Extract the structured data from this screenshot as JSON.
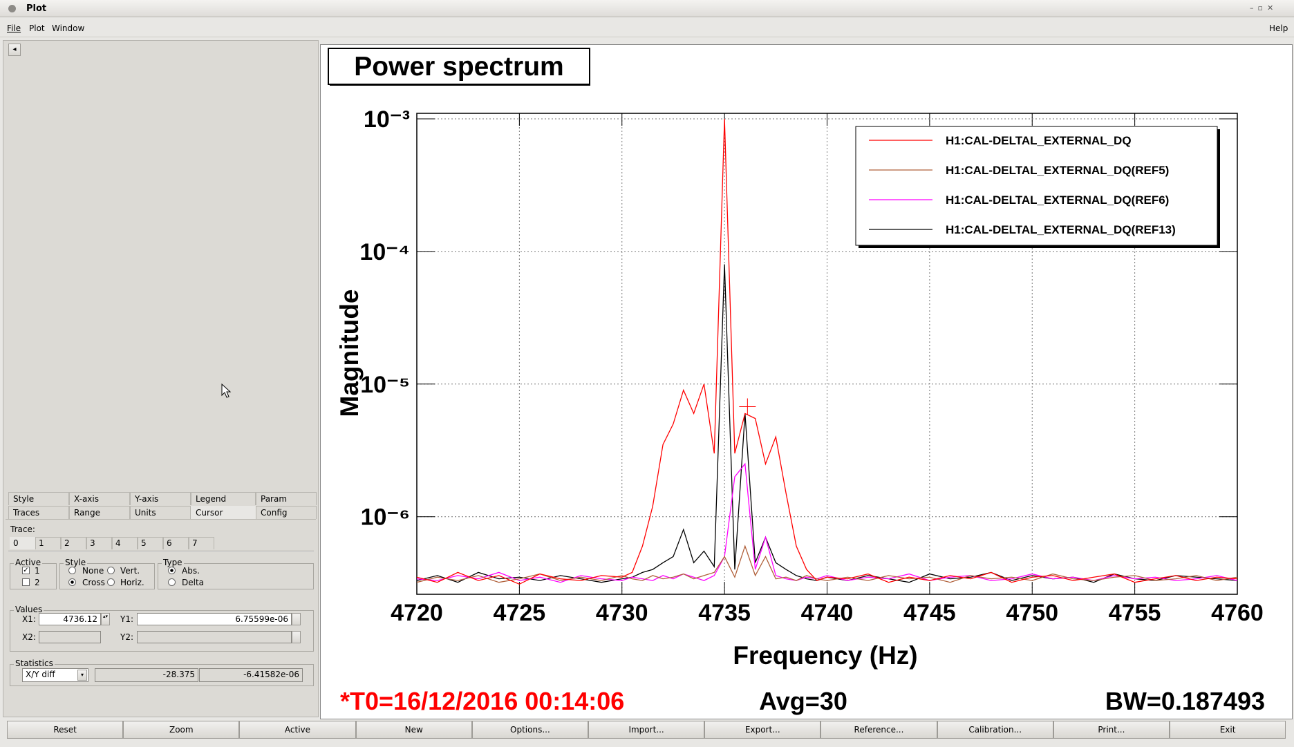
{
  "window": {
    "title": "Plot",
    "menu": [
      "File",
      "Plot",
      "Window"
    ],
    "help": "Help"
  },
  "panel": {
    "tabs_row1": [
      "Style",
      "X-axis",
      "Y-axis",
      "Legend",
      "Param"
    ],
    "tabs_row2": [
      "Traces",
      "Range",
      "Units",
      "Cursor",
      "Config"
    ],
    "trace_label": "Trace:",
    "trace_tabs": [
      "0",
      "1",
      "2",
      "3",
      "4",
      "5",
      "6",
      "7"
    ],
    "active": {
      "title": "Active",
      "items": [
        "1",
        "2"
      ]
    },
    "style": {
      "title": "Style",
      "items": [
        "None",
        "Vert.",
        "Cross",
        "Horiz."
      ]
    },
    "type": {
      "title": "Type",
      "items": [
        "Abs.",
        "Delta"
      ]
    },
    "values": {
      "title": "Values",
      "x1_label": "X1:",
      "x1": "4736.12",
      "y1_label": "Y1:",
      "y1": "6.75599e-06",
      "x2_label": "X2:",
      "y2_label": "Y2:"
    },
    "statistics": {
      "title": "Statistics",
      "mode": "X/Y diff",
      "dx": "-28.375",
      "dy": "-6.41582e-06"
    }
  },
  "buttons": [
    "Reset",
    "Zoom",
    "Active",
    "New",
    "Options...",
    "Import...",
    "Export...",
    "Reference...",
    "Calibration...",
    "Print...",
    "Exit"
  ],
  "chart_data": {
    "type": "line",
    "title": "Power spectrum",
    "x_label": "Frequency (Hz)",
    "y_label": "Magnitude",
    "log_y": true,
    "grid": true,
    "legend": "top-right",
    "annotations": {
      "t0": "*T0=16/12/2016 00:14:06",
      "avg": "Avg=30",
      "bw": "BW=0.187493"
    },
    "xlim": [
      4720,
      4760
    ],
    "xticks": [
      4720,
      4725,
      4730,
      4735,
      4740,
      4745,
      4750,
      4755,
      4760
    ],
    "ylim": [
      2.6e-07,
      0.0011
    ],
    "yticks": [
      {
        "value": 1e-06,
        "label": "10⁻⁶"
      },
      {
        "value": 1e-05,
        "label": "10⁻⁵"
      },
      {
        "value": 0.0001,
        "label": "10⁻⁴"
      },
      {
        "value": 0.001,
        "label": "10⁻³"
      }
    ],
    "x": [
      4720,
      4721,
      4722,
      4723,
      4724,
      4725,
      4726,
      4727,
      4728,
      4729,
      4730,
      4730.5,
      4731,
      4731.5,
      4732,
      4732.5,
      4733,
      4733.5,
      4734,
      4734.5,
      4735,
      4735.5,
      4736,
      4736.5,
      4737,
      4737.5,
      4738,
      4738.5,
      4739,
      4739.5,
      4740,
      4741,
      4742,
      4743,
      4744,
      4745,
      4746,
      4747,
      4748,
      4749,
      4750,
      4751,
      4752,
      4753,
      4754,
      4755,
      4756,
      4757,
      4758,
      4759,
      4760
    ],
    "series": [
      {
        "name": "H1:CAL-DELTAL_EXTERNAL_DQ",
        "color": "#ff0000",
        "values": [
          3.5e-07,
          3.2e-07,
          3.8e-07,
          3.3e-07,
          3.6e-07,
          3.1e-07,
          3.7e-07,
          3.4e-07,
          3.3e-07,
          3.6e-07,
          3.5e-07,
          3.8e-07,
          6e-07,
          1.2e-06,
          3.5e-06,
          5e-06,
          9e-06,
          6e-06,
          1e-05,
          3e-06,
          0.001,
          3e-06,
          6e-06,
          5.5e-06,
          2.5e-06,
          4e-06,
          1.5e-06,
          6e-07,
          4e-07,
          3.3e-07,
          3.5e-07,
          3.4e-07,
          3.7e-07,
          3.2e-07,
          3.5e-07,
          3.3e-07,
          3.6e-07,
          3.4e-07,
          3.8e-07,
          3.2e-07,
          3.5e-07,
          3.6e-07,
          3.3e-07,
          3.5e-07,
          3.7e-07,
          3.2e-07,
          3.4e-07,
          3.6e-07,
          3.3e-07,
          3.5e-07,
          3.4e-07
        ]
      },
      {
        "name": "H1:CAL-DELTAL_EXTERNAL_DQ(REF5)",
        "color": "#b0603a",
        "values": [
          3.2e-07,
          3.5e-07,
          3.3e-07,
          3.6e-07,
          3.2e-07,
          3.4e-07,
          3.7e-07,
          3.3e-07,
          3.5e-07,
          3.3e-07,
          3.6e-07,
          3.4e-07,
          3.3e-07,
          3.6e-07,
          3.4e-07,
          3.5e-07,
          3.7e-07,
          3.4e-07,
          3.6e-07,
          3.8e-07,
          5e-07,
          3.5e-07,
          6e-07,
          3.6e-07,
          5e-07,
          3.4e-07,
          3.5e-07,
          3.3e-07,
          3.6e-07,
          3.4e-07,
          3.3e-07,
          3.5e-07,
          3.3e-07,
          3.6e-07,
          3.4e-07,
          3.5e-07,
          3.2e-07,
          3.6e-07,
          3.4e-07,
          3.5e-07,
          3.3e-07,
          3.7e-07,
          3.4e-07,
          3.3e-07,
          3.5e-07,
          3.6e-07,
          3.3e-07,
          3.4e-07,
          3.6e-07,
          3.3e-07,
          3.5e-07
        ]
      },
      {
        "name": "H1:CAL-DELTAL_EXTERNAL_DQ(REF6)",
        "color": "#ff00ff",
        "values": [
          3.4e-07,
          3.3e-07,
          3.6e-07,
          3.4e-07,
          3.8e-07,
          3.3e-07,
          3.5e-07,
          3.2e-07,
          3.6e-07,
          3.4e-07,
          3.3e-07,
          3.5e-07,
          3.4e-07,
          3.3e-07,
          3.6e-07,
          3.4e-07,
          3.7e-07,
          3.5e-07,
          3.3e-07,
          3.6e-07,
          5e-07,
          2e-06,
          2.5e-06,
          4e-07,
          7e-07,
          3.6e-07,
          3.4e-07,
          3.3e-07,
          3.5e-07,
          3.4e-07,
          3.6e-07,
          3.3e-07,
          3.5e-07,
          3.4e-07,
          3.7e-07,
          3.3e-07,
          3.5e-07,
          3.6e-07,
          3.3e-07,
          3.4e-07,
          3.7e-07,
          3.4e-07,
          3.5e-07,
          3.3e-07,
          3.6e-07,
          3.4e-07,
          3.5e-07,
          3.3e-07,
          3.4e-07,
          3.6e-07,
          3.3e-07
        ]
      },
      {
        "name": "H1:CAL-DELTAL_EXTERNAL_DQ(REF13)",
        "color": "#000000",
        "values": [
          3.3e-07,
          3.6e-07,
          3.2e-07,
          3.8e-07,
          3.4e-07,
          3.5e-07,
          3.3e-07,
          3.6e-07,
          3.4e-07,
          3.2e-07,
          3.4e-07,
          3.5e-07,
          3.8e-07,
          4e-07,
          4.5e-07,
          5e-07,
          8e-07,
          4.5e-07,
          5.5e-07,
          4.2e-07,
          8e-05,
          4e-07,
          6e-06,
          4.5e-07,
          7e-07,
          4.5e-07,
          4e-07,
          3.6e-07,
          3.4e-07,
          3.3e-07,
          3.5e-07,
          3.3e-07,
          3.6e-07,
          3.4e-07,
          3.2e-07,
          3.7e-07,
          3.4e-07,
          3.5e-07,
          3.8e-07,
          3.3e-07,
          3.6e-07,
          3.4e-07,
          3.5e-07,
          3.2e-07,
          3.7e-07,
          3.4e-07,
          3.3e-07,
          3.6e-07,
          3.5e-07,
          3.4e-07,
          3.3e-07
        ]
      }
    ]
  }
}
